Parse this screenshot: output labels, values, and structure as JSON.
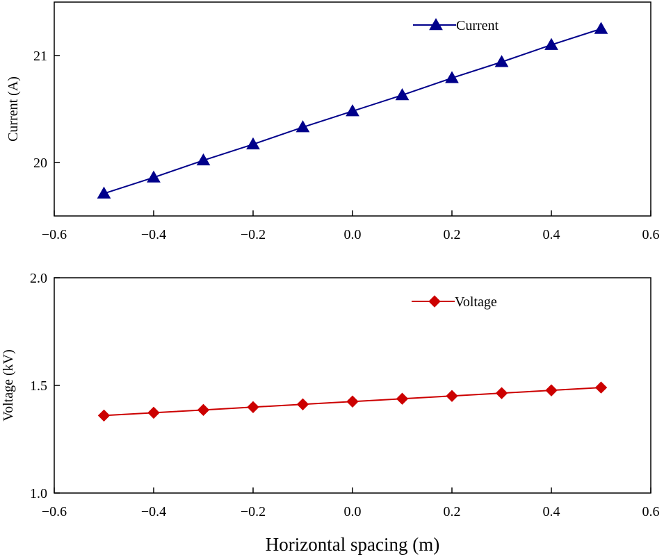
{
  "chart_data": [
    {
      "type": "line",
      "x": [
        -0.5,
        -0.4,
        -0.3,
        -0.2,
        -0.1,
        0.0,
        0.1,
        0.2,
        0.3,
        0.4,
        0.5
      ],
      "series": [
        {
          "name": "Current",
          "values": [
            19.71,
            19.86,
            20.02,
            20.17,
            20.33,
            20.48,
            20.63,
            20.79,
            20.94,
            21.1,
            21.25
          ],
          "color": "#00008b",
          "marker": "triangle"
        }
      ],
      "xlim": [
        -0.6,
        0.6
      ],
      "ylim": [
        19.5,
        21.5
      ],
      "xticks": [
        -0.6,
        -0.4,
        -0.2,
        0.0,
        0.2,
        0.4,
        0.6
      ],
      "xtick_labels": [
        "−0.6",
        "−0.4",
        "−0.2",
        "0.0",
        "0.2",
        "0.4",
        "0.6"
      ],
      "yticks": [
        20,
        21
      ],
      "ytick_labels": [
        "20",
        "21"
      ],
      "ylabel": "Current (A)",
      "xlabel": "",
      "legend_position": "top-right",
      "grid": false
    },
    {
      "type": "line",
      "x": [
        -0.5,
        -0.4,
        -0.3,
        -0.2,
        -0.1,
        0.0,
        0.1,
        0.2,
        0.3,
        0.4,
        0.5
      ],
      "series": [
        {
          "name": "Voltage",
          "values": [
            1.36,
            1.373,
            1.386,
            1.399,
            1.412,
            1.425,
            1.438,
            1.451,
            1.464,
            1.477,
            1.49
          ],
          "color": "#cc0000",
          "marker": "diamond"
        }
      ],
      "xlim": [
        -0.6,
        0.6
      ],
      "ylim": [
        1.0,
        2.0
      ],
      "xticks": [
        -0.6,
        -0.4,
        -0.2,
        0.0,
        0.2,
        0.4,
        0.6
      ],
      "xtick_labels": [
        "−0.6",
        "−0.4",
        "−0.2",
        "0.0",
        "0.2",
        "0.4",
        "0.6"
      ],
      "yticks": [
        1.0,
        1.5,
        2.0
      ],
      "ytick_labels": [
        "1.0",
        "1.5",
        "2.0"
      ],
      "ylabel": "Voltage (kV)",
      "xlabel": "Horizontal spacing (m)",
      "legend_position": "top-right",
      "grid": false
    }
  ]
}
